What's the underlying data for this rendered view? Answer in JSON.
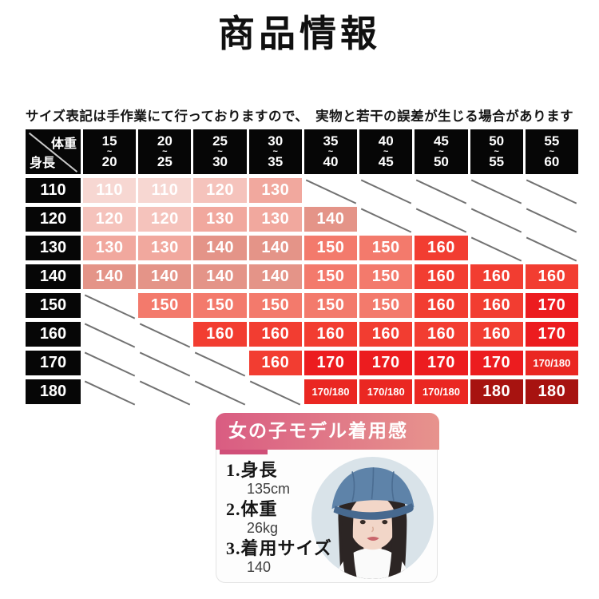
{
  "page": {
    "title": "商品情報",
    "note": "サイズ表記は手作業にて行っておりますので、　実物と若干の誤差が生じる場合があります"
  },
  "size_table": {
    "corner": {
      "top_right": "体重",
      "bottom_left": "身長"
    },
    "tilde": "~",
    "columns": [
      {
        "from": "15",
        "to": "20"
      },
      {
        "from": "20",
        "to": "25"
      },
      {
        "from": "25",
        "to": "30"
      },
      {
        "from": "30",
        "to": "35"
      },
      {
        "from": "35",
        "to": "40"
      },
      {
        "from": "40",
        "to": "45"
      },
      {
        "from": "45",
        "to": "50"
      },
      {
        "from": "50",
        "to": "55"
      },
      {
        "from": "55",
        "to": "60"
      }
    ],
    "rows": [
      {
        "height": "110",
        "cells": [
          "110",
          "110",
          "120",
          "130",
          null,
          null,
          null,
          null,
          null
        ]
      },
      {
        "height": "120",
        "cells": [
          "120",
          "120",
          "130",
          "130",
          "140",
          null,
          null,
          null,
          null
        ]
      },
      {
        "height": "130",
        "cells": [
          "130",
          "130",
          "140",
          "140",
          "150",
          "150",
          "160",
          null,
          null
        ]
      },
      {
        "height": "140",
        "cells": [
          "140",
          "140",
          "140",
          "140",
          "150",
          "150",
          "160",
          "160",
          "160"
        ]
      },
      {
        "height": "150",
        "cells": [
          null,
          "150",
          "150",
          "150",
          "150",
          "150",
          "160",
          "160",
          "170"
        ]
      },
      {
        "height": "160",
        "cells": [
          null,
          null,
          "160",
          "160",
          "160",
          "160",
          "160",
          "160",
          "170"
        ]
      },
      {
        "height": "170",
        "cells": [
          null,
          null,
          null,
          "160",
          "170",
          "170",
          "170",
          "170",
          "170/180"
        ]
      },
      {
        "height": "180",
        "cells": [
          null,
          null,
          null,
          null,
          "170/180",
          "170/180",
          "170/180",
          "180",
          "180"
        ]
      }
    ],
    "palette": {
      "110": "#f7d7d2",
      "120": "#f5c3bc",
      "130": "#f1a89e",
      "140": "#e49488",
      "150": "#f37a6c",
      "160": "#f23d31",
      "170": "#ec1c1f",
      "170/180": "#ea2722",
      "180": "#a71310"
    },
    "header_bg": "#060606",
    "diagonal_line_color": "#727272"
  },
  "model_card": {
    "header": "女の子モデル着用感",
    "header_gradient": [
      "#d95c82",
      "#e7938d"
    ],
    "accent": "#d04f78",
    "items": [
      {
        "number": "1",
        "label": "身長",
        "value": "135cm"
      },
      {
        "number": "2",
        "label": "体重",
        "value": "26kg"
      },
      {
        "number": "3",
        "label": "着用サイズ",
        "value": "140"
      }
    ]
  }
}
